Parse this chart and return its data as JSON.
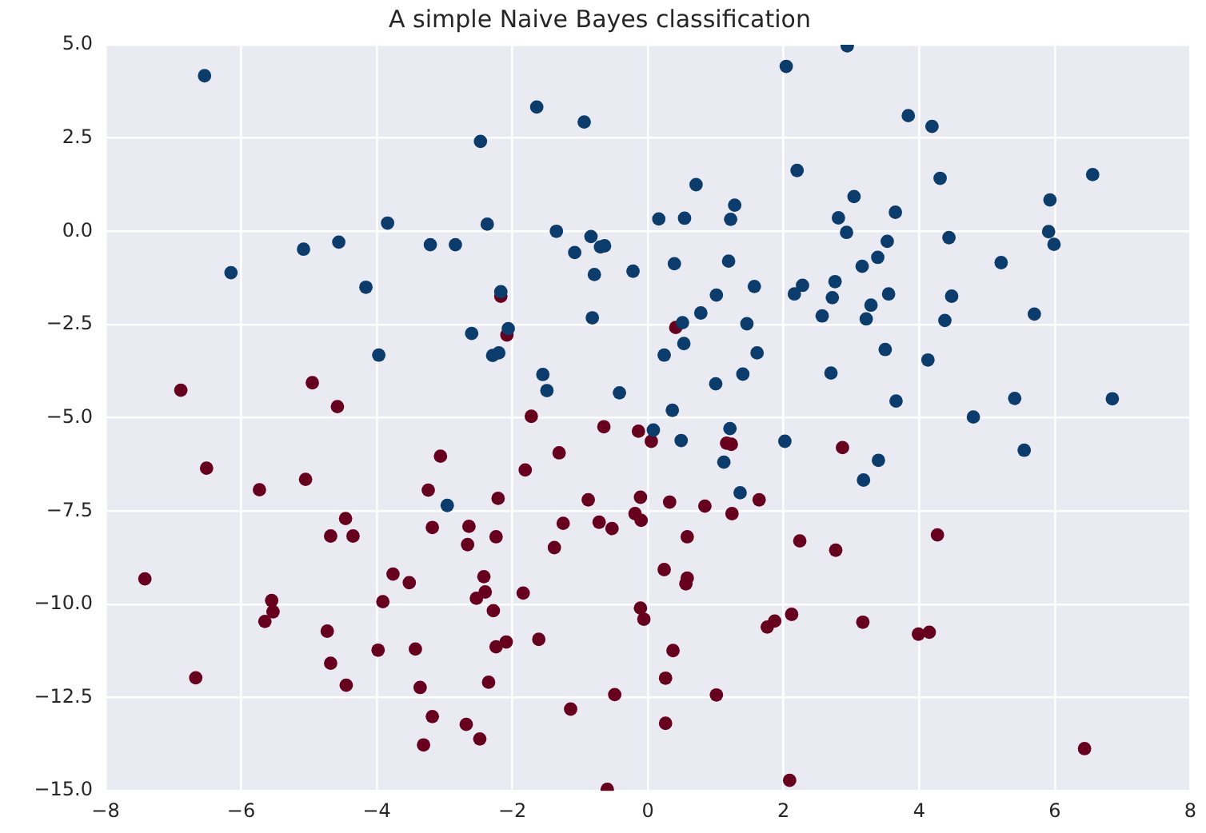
{
  "chart_data": {
    "type": "scatter",
    "title": "A simple Naive Bayes classification",
    "xlim": [
      -8,
      8
    ],
    "xticks": [
      {
        "value": -8,
        "label": "−8"
      },
      {
        "value": -6,
        "label": "−6"
      },
      {
        "value": -4,
        "label": "−4"
      },
      {
        "value": -2,
        "label": "−2"
      },
      0,
      2,
      4,
      6,
      8
    ],
    "ylim": [
      -15,
      5
    ],
    "yticks": [
      {
        "value": -15,
        "label": "−15.0"
      },
      {
        "value": -12.5,
        "label": "−12.5"
      },
      {
        "value": -10,
        "label": "−10.0"
      },
      {
        "value": -7.5,
        "label": "−7.5"
      },
      {
        "value": -5,
        "label": "−5.0"
      },
      {
        "value": -2.5,
        "label": "−2.5"
      },
      {
        "value": 0,
        "label": "0.0"
      },
      2.5,
      {
        "value": 5,
        "label": "5.0"
      }
    ],
    "grid": true,
    "legend": false,
    "marker": "circle",
    "series": [
      {
        "color": "#0b3c6b",
        "x": [
          -6.54,
          -3.84,
          -5.08,
          -4.56,
          -3.21,
          -2.84,
          -6.15,
          -4.16,
          -2.6,
          -3.97,
          2.04,
          -1.64,
          -0.94,
          -2.47,
          2.2,
          0.71,
          1.28,
          0.16,
          0.54,
          1.22,
          2.81,
          -2.37,
          -1.35,
          -0.84,
          -1.08,
          -0.7,
          -0.64,
          -0.22,
          -0.79,
          0.39,
          1.19,
          1.57,
          2.28,
          2.16,
          2.72,
          2.76,
          1.01,
          0.78,
          2.57,
          -2.17,
          -0.82,
          1.46,
          0.51,
          -2.06,
          0.53,
          0.24,
          1.61,
          -2.29,
          -2.2,
          2.7,
          1.4,
          -1.55,
          -1.49,
          1.0,
          -0.42,
          0.36,
          2.94,
          3.84,
          4.19,
          6.56,
          4.31,
          5.93,
          3.04,
          3.65,
          2.93,
          4.44,
          5.91,
          5.99,
          3.53,
          3.39,
          5.21,
          3.16,
          3.55,
          4.48,
          3.29,
          3.22,
          4.38,
          5.7,
          3.5,
          4.13,
          3.66,
          5.41,
          6.85,
          4.8,
          5.55,
          3.4,
          3.18,
          0.08,
          0.49,
          1.21,
          2.02,
          1.12,
          1.36,
          -2.96
        ],
        "values": [
          4.17,
          0.22,
          -0.48,
          -0.29,
          -0.36,
          -0.36,
          -1.11,
          -1.5,
          -2.74,
          -3.32,
          4.42,
          3.33,
          2.93,
          2.41,
          1.63,
          1.25,
          0.7,
          0.33,
          0.35,
          0.32,
          0.36,
          0.19,
          0.0,
          -0.14,
          -0.57,
          -0.42,
          -0.39,
          -1.07,
          -1.16,
          -0.87,
          -0.8,
          -1.48,
          -1.45,
          -1.68,
          -1.78,
          -1.35,
          -1.71,
          -2.19,
          -2.27,
          -1.62,
          -2.32,
          -2.48,
          -2.45,
          -2.61,
          -3.01,
          -3.32,
          -3.26,
          -3.33,
          -3.26,
          -3.8,
          -3.83,
          -3.84,
          -4.27,
          -4.09,
          -4.33,
          -4.8,
          4.97,
          3.1,
          2.81,
          1.52,
          1.42,
          0.84,
          0.93,
          0.51,
          -0.03,
          -0.17,
          -0.01,
          -0.35,
          -0.27,
          -0.7,
          -0.84,
          -0.94,
          -1.68,
          -1.74,
          -1.98,
          -2.35,
          -2.39,
          -2.22,
          -3.17,
          -3.45,
          -4.55,
          -4.48,
          -4.49,
          -4.98,
          -5.87,
          -6.14,
          -6.67,
          -5.33,
          -5.61,
          -5.29,
          -5.63,
          -6.19,
          -7.01,
          -7.35
        ]
      },
      {
        "color": "#67001f",
        "x": [
          -6.89,
          -4.95,
          -4.58,
          -2.17,
          0.41,
          -2.08,
          -1.72,
          2.87,
          4.27,
          2.77,
          3.17,
          3.99,
          4.15,
          6.44,
          -0.65,
          -0.14,
          0.05,
          1.16,
          1.23,
          -1.31,
          -1.81,
          -2.21,
          -0.88,
          -0.11,
          0.32,
          0.84,
          1.64,
          1.24,
          -0.19,
          -0.1,
          -1.25,
          -0.72,
          -0.53,
          -2.64,
          -2.24,
          -2.66,
          0.58,
          2.24,
          -1.38,
          0.24,
          0.58,
          0.56,
          -2.42,
          -2.4,
          -2.53,
          -1.84,
          -2.28,
          -0.11,
          -0.06,
          2.12,
          1.76,
          1.87,
          -2.24,
          -2.09,
          -1.61,
          0.37,
          -2.35,
          0.26,
          -0.49,
          1.01,
          -1.14,
          -2.68,
          -2.48,
          0.26,
          2.09,
          -0.6,
          -6.51,
          -5.05,
          -5.73,
          -3.06,
          -3.24,
          -4.46,
          -4.68,
          -4.35,
          -3.18,
          -7.42,
          -3.76,
          -3.52,
          -3.91,
          -5.55,
          -5.53,
          -5.65,
          -4.73,
          -3.98,
          -3.43,
          -4.68,
          -4.45,
          -3.36,
          -6.67,
          -3.18,
          -3.31
        ],
        "values": [
          -4.26,
          -4.06,
          -4.7,
          -1.74,
          -2.58,
          -2.78,
          -4.96,
          -5.8,
          -8.14,
          -8.55,
          -10.48,
          -10.8,
          -10.75,
          -13.87,
          -5.24,
          -5.36,
          -5.63,
          -5.68,
          -5.71,
          -5.94,
          -6.4,
          -7.16,
          -7.2,
          -7.13,
          -7.26,
          -7.37,
          -7.2,
          -7.57,
          -7.57,
          -7.75,
          -7.83,
          -7.8,
          -7.97,
          -7.91,
          -8.19,
          -8.4,
          -8.19,
          -8.3,
          -8.48,
          -9.07,
          -9.3,
          -9.45,
          -9.26,
          -9.67,
          -9.84,
          -9.7,
          -10.17,
          -10.1,
          -10.4,
          -10.27,
          -10.61,
          -10.45,
          -11.14,
          -11.01,
          -10.94,
          -11.24,
          -12.09,
          -11.98,
          -12.42,
          -12.43,
          -12.81,
          -13.22,
          -13.61,
          -13.19,
          -14.72,
          -14.96,
          -6.35,
          -6.65,
          -6.93,
          -6.03,
          -6.94,
          -7.7,
          -8.17,
          -8.17,
          -7.94,
          -9.32,
          -9.19,
          -9.42,
          -9.93,
          -9.9,
          -10.2,
          -10.46,
          -10.72,
          -11.23,
          -11.2,
          -11.58,
          -12.17,
          -12.23,
          -11.97,
          -13.01,
          -13.77
        ]
      }
    ]
  }
}
